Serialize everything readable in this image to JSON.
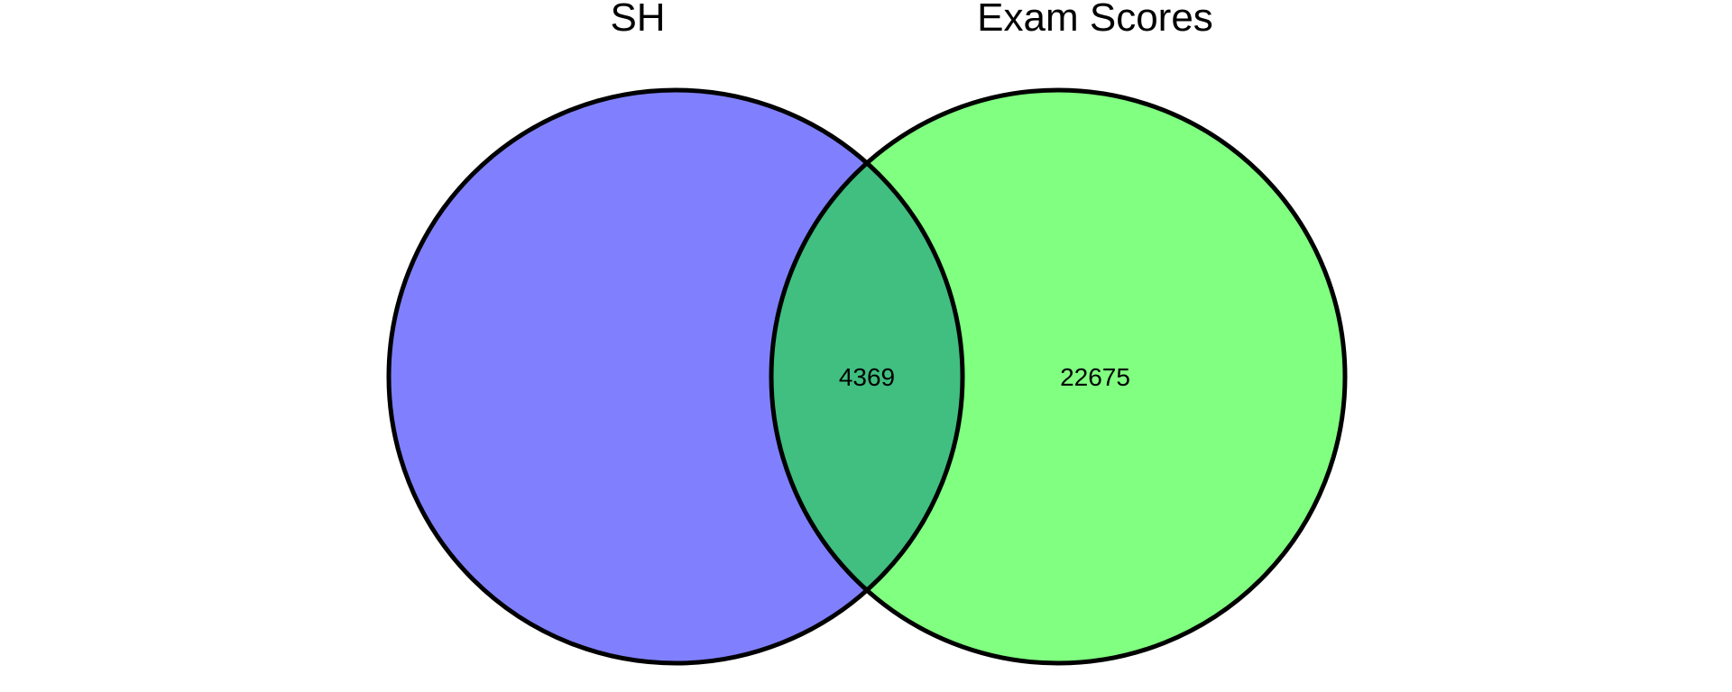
{
  "sets": [
    {
      "label": "SH",
      "color": "#8080ff"
    },
    {
      "label": "Exam Scores",
      "color": "#80ff80"
    }
  ],
  "overlap_color": "#40bf80",
  "counts": {
    "only_a": "",
    "intersection": "4369",
    "only_b": "22675"
  }
}
